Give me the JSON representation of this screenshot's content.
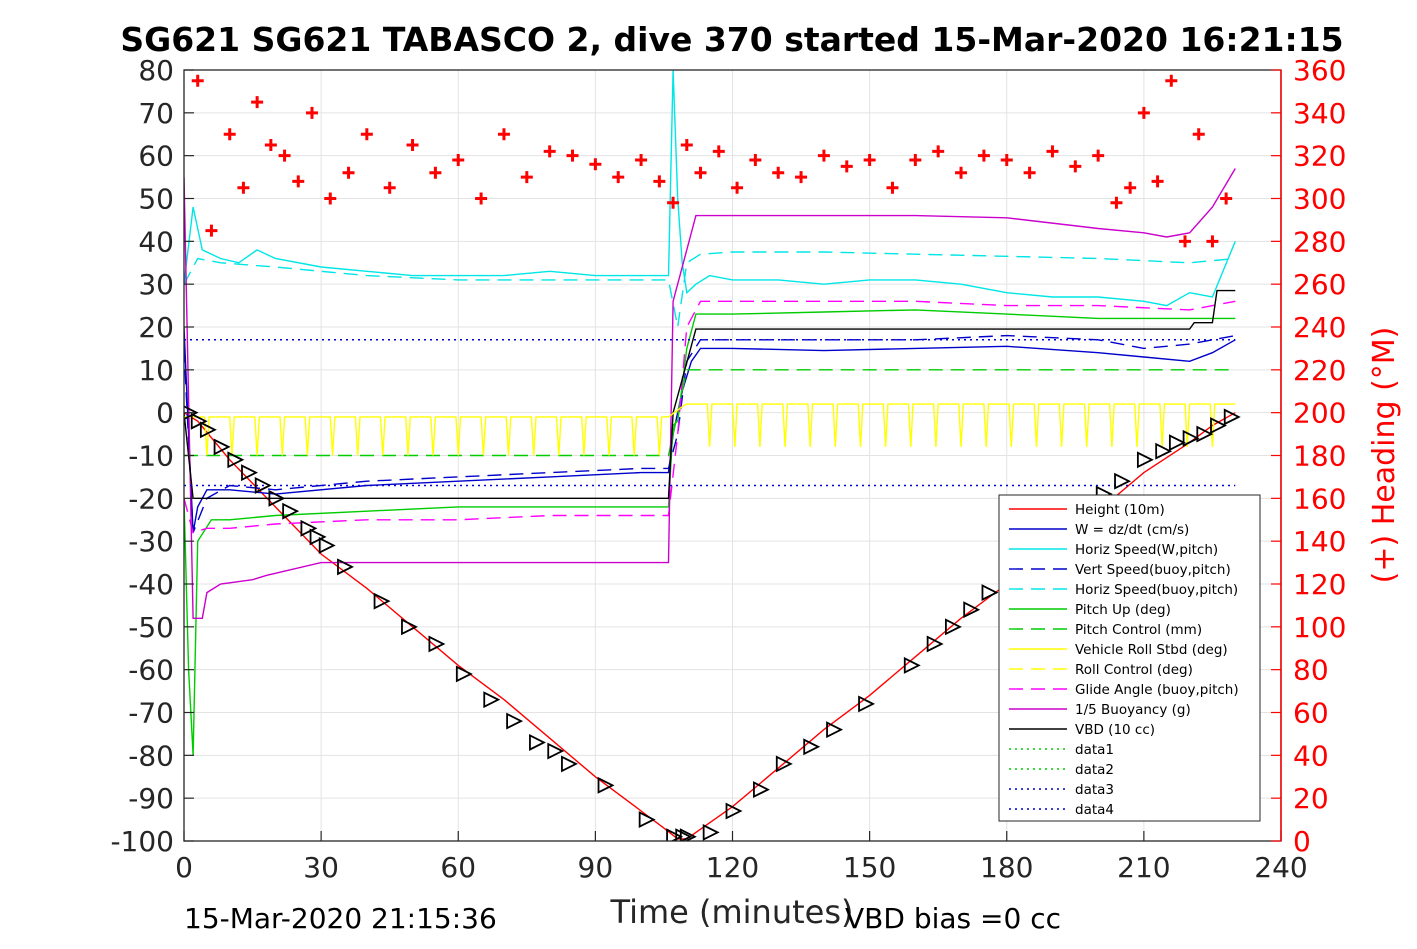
{
  "chart_data": {
    "type": "line",
    "title": "SG621 SG621 TABASCO 2, dive 370 started 15-Mar-2020 16:21:15",
    "xlabel": "Time (minutes)",
    "ylabel": "",
    "ylabel_right": "(+) Heading (°M)",
    "xlim": [
      0,
      240
    ],
    "ylim": [
      -100,
      80
    ],
    "ylim_right": [
      0,
      360
    ],
    "xticks": [
      0,
      30,
      60,
      90,
      120,
      150,
      180,
      210,
      240
    ],
    "yticks": [
      80,
      70,
      60,
      50,
      40,
      30,
      20,
      10,
      0,
      -10,
      -20,
      -30,
      -40,
      -50,
      -60,
      -70,
      -80,
      -90,
      -100
    ],
    "yticks_right": [
      360,
      340,
      320,
      300,
      280,
      260,
      240,
      220,
      200,
      180,
      160,
      140,
      120,
      100,
      80,
      60,
      40,
      20,
      0
    ],
    "grid": true,
    "legend_position": "lower-right",
    "footer_left": "15-Mar-2020 21:15:36",
    "footer_right": "VBD bias =0 cc",
    "colors": {
      "height": "#ff0000",
      "w": "#0000cc",
      "horiz_speed": "#00e5e5",
      "pitch": "#00cc00",
      "roll": "#ffff00",
      "glide": "#ff00ff",
      "buoyancy": "#cc00cc",
      "vbd": "#000000",
      "heading": "#ff0000"
    },
    "legend": [
      {
        "label": "Height (10m)",
        "color": "#ff0000",
        "dash": "solid"
      },
      {
        "label": "W = dz/dt (cm/s)",
        "color": "#0000cc",
        "dash": "solid"
      },
      {
        "label": "Horiz Speed(W,pitch)",
        "color": "#00e5e5",
        "dash": "solid"
      },
      {
        "label": "Vert Speed(buoy,pitch)",
        "color": "#0000cc",
        "dash": "dashed"
      },
      {
        "label": "Horiz Speed(buoy,pitch)",
        "color": "#00e5e5",
        "dash": "dashed"
      },
      {
        "label": "Pitch Up (deg)",
        "color": "#00cc00",
        "dash": "solid"
      },
      {
        "label": "Pitch Control (mm)",
        "color": "#00cc00",
        "dash": "dashed"
      },
      {
        "label": "Vehicle Roll Stbd (deg)",
        "color": "#ffff00",
        "dash": "solid"
      },
      {
        "label": "Roll Control (deg)",
        "color": "#ffff00",
        "dash": "dashed"
      },
      {
        "label": "Glide Angle (buoy,pitch)",
        "color": "#ff00ff",
        "dash": "dashed"
      },
      {
        "label": "1/5 Buoyancy (g)",
        "color": "#cc00cc",
        "dash": "solid"
      },
      {
        "label": "VBD (10 cc)",
        "color": "#000000",
        "dash": "solid"
      },
      {
        "label": "data1",
        "color": "#00cc00",
        "dash": "dotted"
      },
      {
        "label": "data2",
        "color": "#00cc00",
        "dash": "dotted"
      },
      {
        "label": "data3",
        "color": "#0000cc",
        "dash": "dotted"
      },
      {
        "label": "data4",
        "color": "#0000cc",
        "dash": "dotted"
      }
    ],
    "series": [
      {
        "key": "height",
        "axis": "left",
        "dash": "solid",
        "x": [
          0,
          3,
          10,
          20,
          30,
          40,
          50,
          60,
          70,
          80,
          90,
          100,
          105,
          108,
          110,
          112,
          120,
          130,
          140,
          150,
          160,
          170,
          180,
          190,
          200,
          210,
          220,
          225,
          230
        ],
        "y": [
          0,
          -2,
          -11,
          -22,
          -33,
          -41,
          -50,
          -59,
          -67,
          -76,
          -85,
          -93,
          -97,
          -99.5,
          -99.5,
          -98,
          -92,
          -83,
          -74,
          -66,
          -57,
          -48,
          -40,
          -31,
          -23,
          -14,
          -7,
          -3,
          0
        ]
      },
      {
        "key": "w",
        "axis": "left",
        "dash": "solid",
        "x": [
          0,
          1,
          2,
          3,
          5,
          10,
          20,
          40,
          60,
          80,
          100,
          106,
          107,
          109,
          111,
          113,
          120,
          140,
          160,
          180,
          200,
          210,
          220,
          225,
          230
        ],
        "y": [
          20,
          -5,
          -28,
          -22,
          -18,
          -18,
          -19,
          -17,
          -16,
          -15,
          -14,
          -14,
          -5,
          5,
          12,
          15,
          15,
          14.5,
          15,
          15.5,
          14,
          13,
          12,
          14,
          17
        ]
      },
      {
        "key": "vert_speed_buoy",
        "axis": "left",
        "dash": "dashed",
        "x": [
          0,
          2,
          5,
          10,
          20,
          40,
          60,
          80,
          100,
          106,
          108,
          110,
          113,
          120,
          140,
          160,
          180,
          200,
          210,
          220,
          230
        ],
        "y": [
          15,
          -28,
          -20,
          -17,
          -18,
          -16,
          -15,
          -14,
          -13,
          -13,
          -5,
          12,
          17,
          17,
          17,
          17,
          18,
          17,
          15,
          16,
          18
        ]
      },
      {
        "key": "horiz_speed_w",
        "axis": "left",
        "dash": "solid",
        "x": [
          0,
          2,
          4,
          8,
          12,
          16,
          20,
          30,
          40,
          50,
          60,
          70,
          80,
          90,
          100,
          106,
          107,
          108,
          109,
          110,
          112,
          115,
          120,
          130,
          140,
          150,
          160,
          170,
          180,
          190,
          200,
          210,
          215,
          220,
          225,
          230
        ],
        "y": [
          30,
          48,
          38,
          36,
          35,
          38,
          36,
          34,
          33,
          32,
          32,
          32,
          33,
          32,
          32,
          32,
          80,
          50,
          35,
          28,
          30,
          32,
          31,
          31,
          30,
          31,
          31,
          30,
          28,
          27,
          27,
          26,
          25,
          28,
          27,
          40
        ]
      },
      {
        "key": "horiz_speed_buoy",
        "axis": "left",
        "dash": "dashed",
        "x": [
          0,
          3,
          8,
          20,
          40,
          60,
          80,
          100,
          106,
          108,
          110,
          113,
          120,
          140,
          160,
          180,
          200,
          220,
          230
        ],
        "y": [
          30,
          36,
          35,
          34,
          32,
          31,
          31,
          31,
          31,
          20,
          35,
          37,
          37.5,
          37.5,
          37,
          36.5,
          36,
          35,
          36
        ]
      },
      {
        "key": "pitch_up",
        "axis": "left",
        "dash": "solid",
        "x": [
          0,
          1,
          2,
          3,
          6,
          10,
          20,
          40,
          60,
          80,
          100,
          106,
          107,
          108,
          110,
          112,
          120,
          140,
          160,
          180,
          200,
          210,
          220,
          230
        ],
        "y": [
          -20,
          -60,
          -80,
          -30,
          -25,
          -25,
          -24,
          -23,
          -22,
          -22,
          -22,
          -22,
          -3,
          -2,
          15,
          23,
          23,
          23.5,
          24,
          23,
          22,
          22,
          22,
          22
        ]
      },
      {
        "key": "pitch_control",
        "axis": "left",
        "dash": "dashed",
        "x": [
          0,
          3,
          106,
          108,
          110,
          230
        ],
        "y": [
          -10,
          -10,
          -10,
          0,
          10,
          10
        ]
      },
      {
        "key": "glide_angle",
        "axis": "left",
        "dash": "dashed",
        "x": [
          0,
          2,
          5,
          10,
          20,
          40,
          60,
          80,
          100,
          106,
          108,
          110,
          113,
          120,
          140,
          160,
          180,
          200,
          220,
          230
        ],
        "y": [
          -20,
          -28,
          -27,
          -27,
          -26,
          -25,
          -25,
          -24,
          -24,
          -24,
          -5,
          20,
          26,
          26,
          26,
          26,
          25,
          25,
          24,
          26
        ]
      },
      {
        "key": "buoyancy",
        "axis": "left",
        "dash": "solid",
        "x": [
          0,
          2,
          4,
          5,
          8,
          15,
          18,
          30,
          40,
          60,
          80,
          100,
          106,
          107,
          112,
          120,
          140,
          160,
          180,
          200,
          210,
          215,
          220,
          225,
          230
        ],
        "y": [
          55,
          -48,
          -48,
          -42,
          -40,
          -39,
          -38,
          -35,
          -35,
          -35,
          -35,
          -35,
          -35,
          26,
          46,
          46,
          46,
          46,
          45.5,
          43,
          42,
          41,
          42,
          48,
          57
        ]
      },
      {
        "key": "vbd",
        "axis": "left",
        "dash": "solid",
        "x": [
          0,
          2,
          3,
          106,
          107,
          112,
          113,
          220,
          221,
          225,
          226,
          230
        ],
        "y": [
          0,
          -20,
          -20,
          -20,
          0,
          19.5,
          19.5,
          19.5,
          21,
          21,
          28.5,
          28.5
        ]
      },
      {
        "key": "roll",
        "axis": "left",
        "dash": "solid",
        "spiky": true,
        "x": [
          0,
          3,
          106,
          108,
          110,
          230
        ],
        "y": [
          -2,
          0,
          0,
          -2,
          2,
          2
        ]
      },
      {
        "key": "data3",
        "axis": "left",
        "dash": "dotted",
        "x": [
          0,
          230
        ],
        "y": [
          17,
          17
        ]
      },
      {
        "key": "data4",
        "axis": "left",
        "dash": "dotted",
        "x": [
          0,
          230
        ],
        "y": [
          -17,
          -17
        ]
      },
      {
        "key": "heading",
        "axis": "right",
        "marker": "+",
        "x": [
          3,
          6,
          10,
          13,
          16,
          19,
          22,
          25,
          28,
          32,
          36,
          40,
          45,
          50,
          55,
          60,
          65,
          70,
          75,
          80,
          85,
          90,
          95,
          100,
          104,
          107,
          110,
          113,
          117,
          121,
          125,
          130,
          135,
          140,
          145,
          150,
          155,
          160,
          165,
          170,
          175,
          180,
          185,
          190,
          195,
          200,
          204,
          207,
          210,
          213,
          216,
          219,
          222,
          225,
          228
        ],
        "y": [
          355,
          285,
          330,
          305,
          345,
          325,
          320,
          308,
          340,
          300,
          312,
          330,
          305,
          325,
          312,
          318,
          300,
          330,
          310,
          322,
          320,
          316,
          310,
          318,
          308,
          298,
          325,
          312,
          322,
          305,
          318,
          312,
          310,
          320,
          315,
          318,
          305,
          318,
          322,
          312,
          320,
          318,
          312,
          322,
          315,
          320,
          298,
          305,
          340,
          308,
          355,
          280,
          330,
          280,
          300
        ]
      }
    ],
    "markers": {
      "type": "triangle",
      "x": [
        1,
        3,
        5,
        8,
        11,
        14,
        17,
        20,
        23,
        27,
        29,
        31,
        35,
        43,
        49,
        55,
        61,
        67,
        72,
        77,
        81,
        84,
        92,
        101,
        107,
        109,
        110,
        115,
        120,
        126,
        131,
        137,
        142,
        149,
        159,
        164,
        168,
        172,
        176,
        181,
        189,
        195,
        201,
        205,
        210,
        214,
        217,
        220,
        223,
        226,
        229
      ],
      "y": [
        0,
        -2,
        -4,
        -8,
        -11,
        -14,
        -17,
        -20,
        -23,
        -27,
        -29,
        -31,
        -36,
        -44,
        -50,
        -54,
        -61,
        -67,
        -72,
        -77,
        -79,
        -82,
        -87,
        -95,
        -99,
        -99,
        -99,
        -98,
        -93,
        -88,
        -82,
        -78,
        -74,
        -68,
        -59,
        -54,
        -50,
        -46,
        -42,
        -37,
        -30,
        -25,
        -19,
        -16,
        -11,
        -9,
        -7,
        -6,
        -5,
        -3,
        -1
      ]
    }
  }
}
